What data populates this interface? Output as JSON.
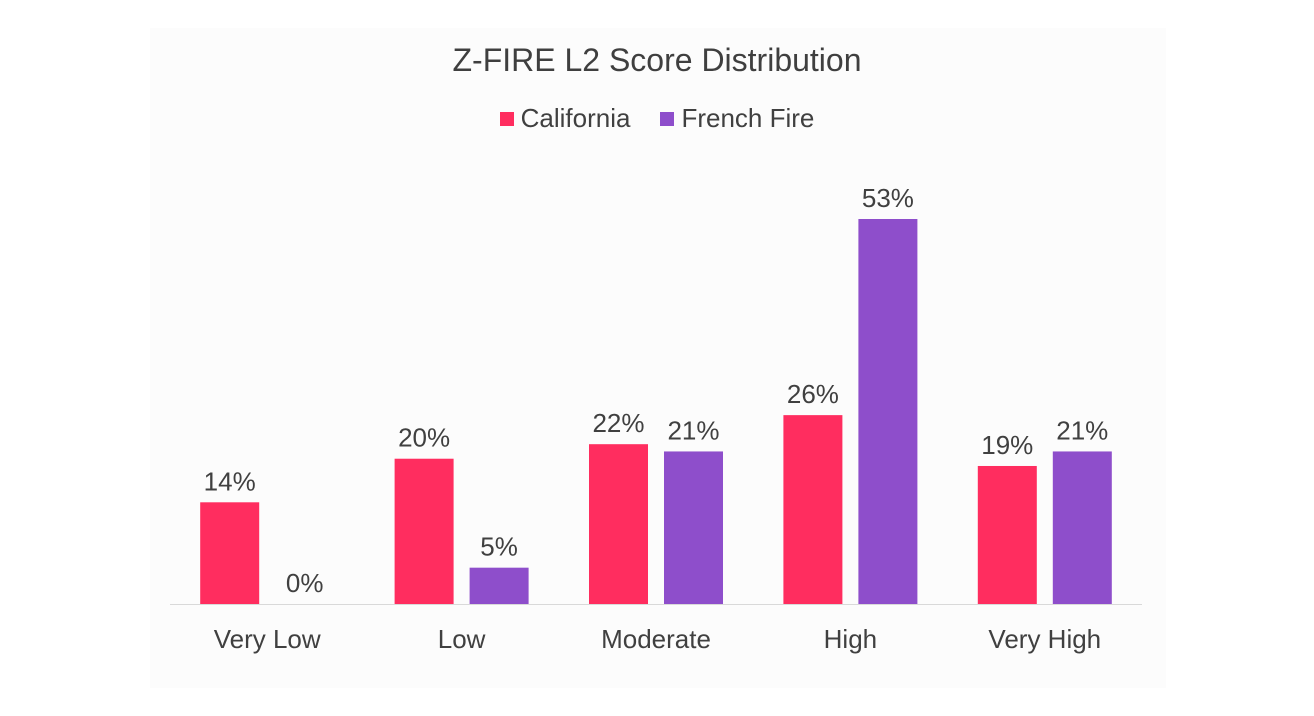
{
  "chart_data": {
    "type": "bar",
    "title": "Z-FIRE L2 Score Distribution",
    "categories": [
      "Very Low",
      "Low",
      "Moderate",
      "High",
      "Very High"
    ],
    "series": [
      {
        "name": "California",
        "color": "#ff2d5f",
        "values": [
          14,
          20,
          22,
          26,
          19
        ],
        "labels": [
          "14%",
          "20%",
          "22%",
          "26%",
          "19%"
        ]
      },
      {
        "name": "French Fire",
        "color": "#8e4ecb",
        "values": [
          0,
          5,
          21,
          53,
          21
        ],
        "labels": [
          "0%",
          "5%",
          "21%",
          "53%",
          "21%"
        ]
      }
    ],
    "ylim": [
      0,
      53
    ],
    "grid": false,
    "legend_position": "top-center",
    "xlabel": "",
    "ylabel": ""
  }
}
